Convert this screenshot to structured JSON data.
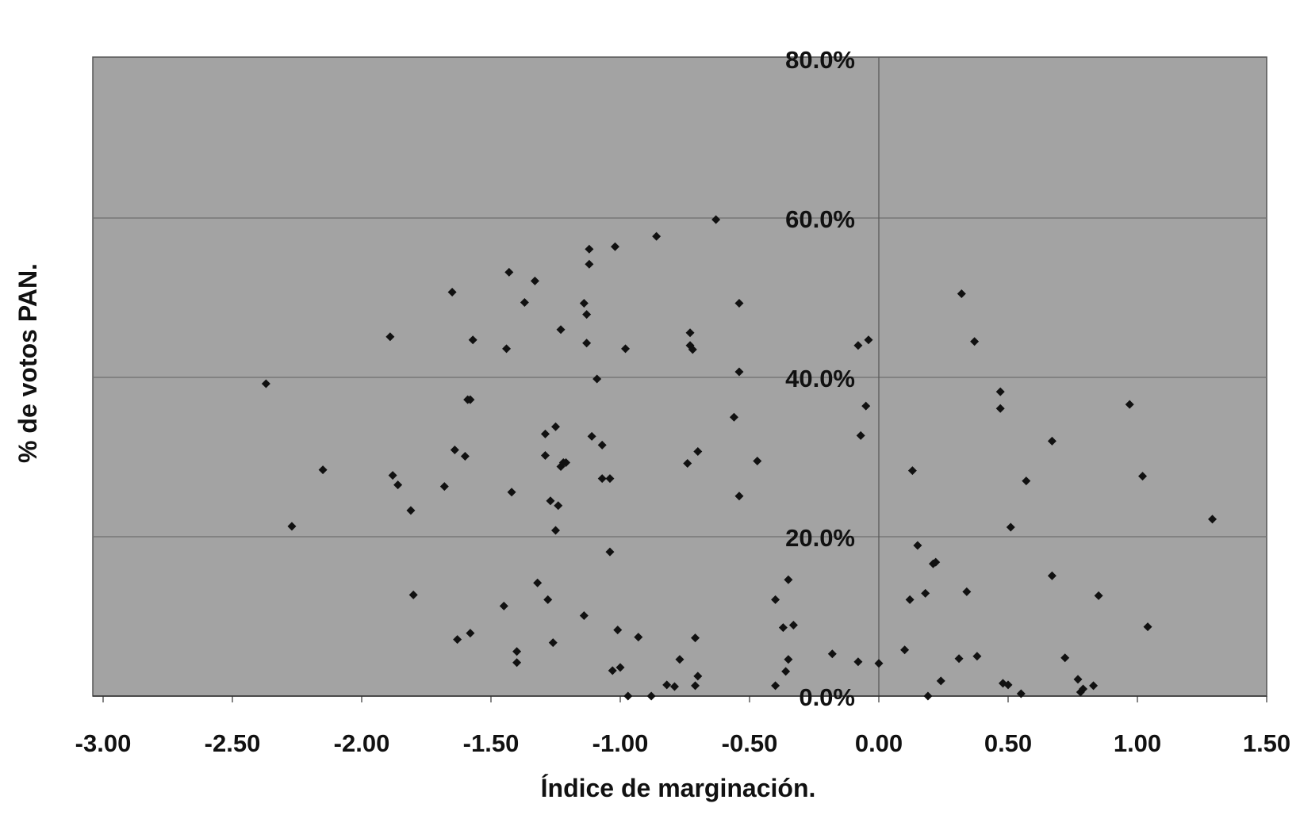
{
  "chart_data": {
    "type": "scatter",
    "xlabel": "Índice de marginación.",
    "ylabel": "% de votos PAN.",
    "xlim": [
      -3.0,
      1.5
    ],
    "ylim": [
      0,
      0.8
    ],
    "x_ticks": [
      "-3.00",
      "-2.50",
      "-2.00",
      "-1.50",
      "-1.00",
      "-0.50",
      "0.00",
      "0.50",
      "1.00",
      "1.50"
    ],
    "y_ticks": [
      "0.0%",
      "20.0%",
      "40.0%",
      "60.0%",
      "80.0%"
    ],
    "y_tick_values": [
      0,
      0.2,
      0.4,
      0.6,
      0.8
    ],
    "grid": "horizontal",
    "marker": "diamond",
    "colors": {
      "plot_bg": "#a3a3a3",
      "marker": "#111111",
      "grid": "#6e6e6e"
    },
    "series": [
      {
        "points": [
          [
            -2.37,
            0.392
          ],
          [
            -2.27,
            0.213
          ],
          [
            -2.15,
            0.284
          ],
          [
            -1.89,
            0.451
          ],
          [
            -1.88,
            0.277
          ],
          [
            -1.86,
            0.265
          ],
          [
            -1.81,
            0.233
          ],
          [
            -1.8,
            0.127
          ],
          [
            -1.68,
            0.263
          ],
          [
            -1.65,
            0.507
          ],
          [
            -1.64,
            0.309
          ],
          [
            -1.63,
            0.071
          ],
          [
            -1.6,
            0.301
          ],
          [
            -1.59,
            0.372
          ],
          [
            -1.58,
            0.372
          ],
          [
            -1.58,
            0.079
          ],
          [
            -1.57,
            0.447
          ],
          [
            -1.45,
            0.113
          ],
          [
            -1.44,
            0.436
          ],
          [
            -1.43,
            0.532
          ],
          [
            -1.42,
            0.256
          ],
          [
            -1.4,
            0.056
          ],
          [
            -1.4,
            0.042
          ],
          [
            -1.37,
            0.494
          ],
          [
            -1.33,
            0.521
          ],
          [
            -1.32,
            0.142
          ],
          [
            -1.29,
            0.329
          ],
          [
            -1.29,
            0.302
          ],
          [
            -1.28,
            0.121
          ],
          [
            -1.27,
            0.245
          ],
          [
            -1.26,
            0.067
          ],
          [
            -1.25,
            0.338
          ],
          [
            -1.25,
            0.208
          ],
          [
            -1.24,
            0.239
          ],
          [
            -1.23,
            0.288
          ],
          [
            -1.23,
            0.46
          ],
          [
            -1.22,
            0.293
          ],
          [
            -1.21,
            0.293
          ],
          [
            -1.14,
            0.493
          ],
          [
            -1.14,
            0.101
          ],
          [
            -1.13,
            0.479
          ],
          [
            -1.13,
            0.443
          ],
          [
            -1.12,
            0.561
          ],
          [
            -1.12,
            0.542
          ],
          [
            -1.11,
            0.326
          ],
          [
            -1.09,
            0.398
          ],
          [
            -1.07,
            0.273
          ],
          [
            -1.07,
            0.315
          ],
          [
            -1.04,
            0.181
          ],
          [
            -1.04,
            0.273
          ],
          [
            -1.03,
            0.032
          ],
          [
            -1.02,
            0.564
          ],
          [
            -1.01,
            0.083
          ],
          [
            -1.0,
            0.036
          ],
          [
            -0.98,
            0.436
          ],
          [
            -0.97,
            0.0
          ],
          [
            -0.93,
            0.074
          ],
          [
            -0.88,
            0.0
          ],
          [
            -0.86,
            0.577
          ],
          [
            -0.82,
            0.014
          ],
          [
            -0.79,
            0.012
          ],
          [
            -0.77,
            0.046
          ],
          [
            -0.74,
            0.292
          ],
          [
            -0.73,
            0.456
          ],
          [
            -0.73,
            0.44
          ],
          [
            -0.72,
            0.435
          ],
          [
            -0.71,
            0.073
          ],
          [
            -0.71,
            0.013
          ],
          [
            -0.7,
            0.025
          ],
          [
            -0.7,
            0.307
          ],
          [
            -0.63,
            0.598
          ],
          [
            -0.56,
            0.35
          ],
          [
            -0.54,
            0.493
          ],
          [
            -0.54,
            0.407
          ],
          [
            -0.54,
            0.251
          ],
          [
            -0.47,
            0.295
          ],
          [
            -0.4,
            0.121
          ],
          [
            -0.4,
            0.013
          ],
          [
            -0.37,
            0.086
          ],
          [
            -0.36,
            0.031
          ],
          [
            -0.35,
            0.046
          ],
          [
            -0.35,
            0.146
          ],
          [
            -0.33,
            0.089
          ],
          [
            -0.18,
            0.053
          ],
          [
            -0.08,
            0.043
          ],
          [
            -0.08,
            0.44
          ],
          [
            -0.07,
            0.327
          ],
          [
            -0.05,
            0.364
          ],
          [
            -0.04,
            0.447
          ],
          [
            0.0,
            0.041
          ],
          [
            0.1,
            0.058
          ],
          [
            0.12,
            0.121
          ],
          [
            0.13,
            0.283
          ],
          [
            0.15,
            0.189
          ],
          [
            0.18,
            0.129
          ],
          [
            0.19,
            0.0
          ],
          [
            0.21,
            0.166
          ],
          [
            0.22,
            0.168
          ],
          [
            0.24,
            0.019
          ],
          [
            0.31,
            0.047
          ],
          [
            0.32,
            0.505
          ],
          [
            0.34,
            0.131
          ],
          [
            0.37,
            0.445
          ],
          [
            0.38,
            0.05
          ],
          [
            0.47,
            0.361
          ],
          [
            0.47,
            0.382
          ],
          [
            0.48,
            0.016
          ],
          [
            0.5,
            0.014
          ],
          [
            0.51,
            0.212
          ],
          [
            0.55,
            0.003
          ],
          [
            0.57,
            0.27
          ],
          [
            0.67,
            0.32
          ],
          [
            0.67,
            0.151
          ],
          [
            0.72,
            0.048
          ],
          [
            0.77,
            0.021
          ],
          [
            0.78,
            0.005
          ],
          [
            0.79,
            0.009
          ],
          [
            0.83,
            0.013
          ],
          [
            0.85,
            0.126
          ],
          [
            0.97,
            0.366
          ],
          [
            1.02,
            0.276
          ],
          [
            1.04,
            0.087
          ],
          [
            1.29,
            0.222
          ]
        ]
      }
    ]
  }
}
